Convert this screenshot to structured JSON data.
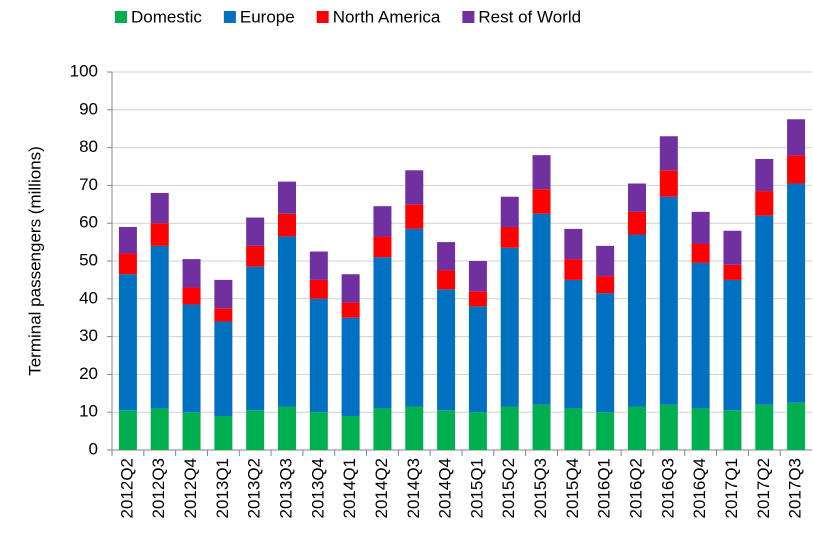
{
  "chart_data": {
    "type": "stacked_bar",
    "y_label": "Terminal passengers (millions)",
    "categories": [
      "2012Q2",
      "2012Q3",
      "2012Q4",
      "2013Q1",
      "2013Q2",
      "2013Q3",
      "2013Q4",
      "2014Q1",
      "2014Q2",
      "2014Q3",
      "2014Q4",
      "2015Q1",
      "2015Q2",
      "2015Q3",
      "2015Q4",
      "2016Q1",
      "2016Q2",
      "2016Q3",
      "2016Q4",
      "2017Q1",
      "2017Q2",
      "2017Q3"
    ],
    "series": [
      {
        "name": "Domestic",
        "color": "#00b050",
        "values": [
          10.5,
          11,
          10,
          9,
          10.5,
          11.5,
          10,
          9,
          11,
          11.5,
          10.5,
          10,
          11.5,
          12,
          11,
          10,
          11.5,
          12,
          11,
          10.5,
          12,
          12.5
        ]
      },
      {
        "name": "Europe",
        "color": "#0070c0",
        "values": [
          36,
          43,
          28.5,
          25,
          38,
          45,
          30,
          26,
          40,
          47,
          32,
          28,
          42,
          50.5,
          34,
          31.5,
          45.5,
          55,
          38.5,
          34.5,
          50,
          58
        ]
      },
      {
        "name": "North America",
        "color": "#ff0000",
        "values": [
          5.5,
          6,
          4.5,
          3.5,
          5.5,
          6,
          5,
          4,
          5.5,
          6.5,
          5,
          4,
          5.5,
          6.5,
          5.5,
          4.5,
          6,
          7,
          5,
          4,
          6.5,
          7.5
        ]
      },
      {
        "name": "Rest of World",
        "color": "#7030a0",
        "values": [
          7,
          8,
          7.5,
          7.5,
          7.5,
          8.5,
          7.5,
          7.5,
          8,
          9,
          7.5,
          8,
          8,
          9,
          8,
          8,
          7.5,
          9,
          8.5,
          9,
          8.5,
          9.5
        ]
      }
    ],
    "ylim": [
      0,
      100
    ],
    "yticks": [
      0,
      10,
      20,
      30,
      40,
      50,
      60,
      70,
      80,
      90,
      100
    ],
    "grid": true,
    "legend": "top"
  }
}
